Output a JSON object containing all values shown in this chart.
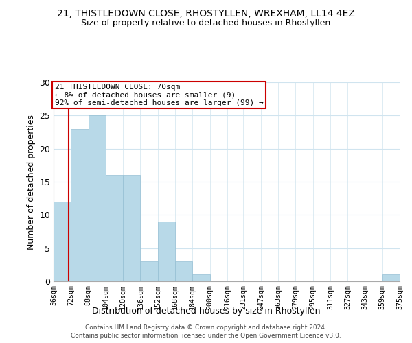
{
  "title": "21, THISTLEDOWN CLOSE, RHOSTYLLEN, WREXHAM, LL14 4EZ",
  "subtitle": "Size of property relative to detached houses in Rhostyllen",
  "xlabel": "Distribution of detached houses by size in Rhostyllen",
  "ylabel": "Number of detached properties",
  "bin_edges": [
    56,
    72,
    88,
    104,
    120,
    136,
    152,
    168,
    184,
    200,
    216,
    231,
    247,
    263,
    279,
    295,
    311,
    327,
    343,
    359,
    375
  ],
  "bar_heights": [
    12,
    23,
    25,
    16,
    16,
    3,
    9,
    3,
    1,
    0,
    0,
    0,
    0,
    0,
    0,
    0,
    0,
    0,
    0,
    1
  ],
  "bar_color": "#b8d9e8",
  "bar_edgecolor": "#95bfd4",
  "ylim": [
    0,
    30
  ],
  "yticks": [
    0,
    5,
    10,
    15,
    20,
    25,
    30
  ],
  "property_size": 70,
  "red_line_color": "#cc0000",
  "annotation_text": "21 THISTLEDOWN CLOSE: 70sqm\n← 8% of detached houses are smaller (9)\n92% of semi-detached houses are larger (99) →",
  "annotation_box_color": "#cc0000",
  "footnote1": "Contains HM Land Registry data © Crown copyright and database right 2024.",
  "footnote2": "Contains public sector information licensed under the Open Government Licence v3.0.",
  "xtick_labels": [
    "56sqm",
    "72sqm",
    "88sqm",
    "104sqm",
    "120sqm",
    "136sqm",
    "152sqm",
    "168sqm",
    "184sqm",
    "200sqm",
    "216sqm",
    "231sqm",
    "247sqm",
    "263sqm",
    "279sqm",
    "295sqm",
    "311sqm",
    "327sqm",
    "343sqm",
    "359sqm",
    "375sqm"
  ],
  "grid_color": "#d0e4ef",
  "background_color": "#ffffff"
}
